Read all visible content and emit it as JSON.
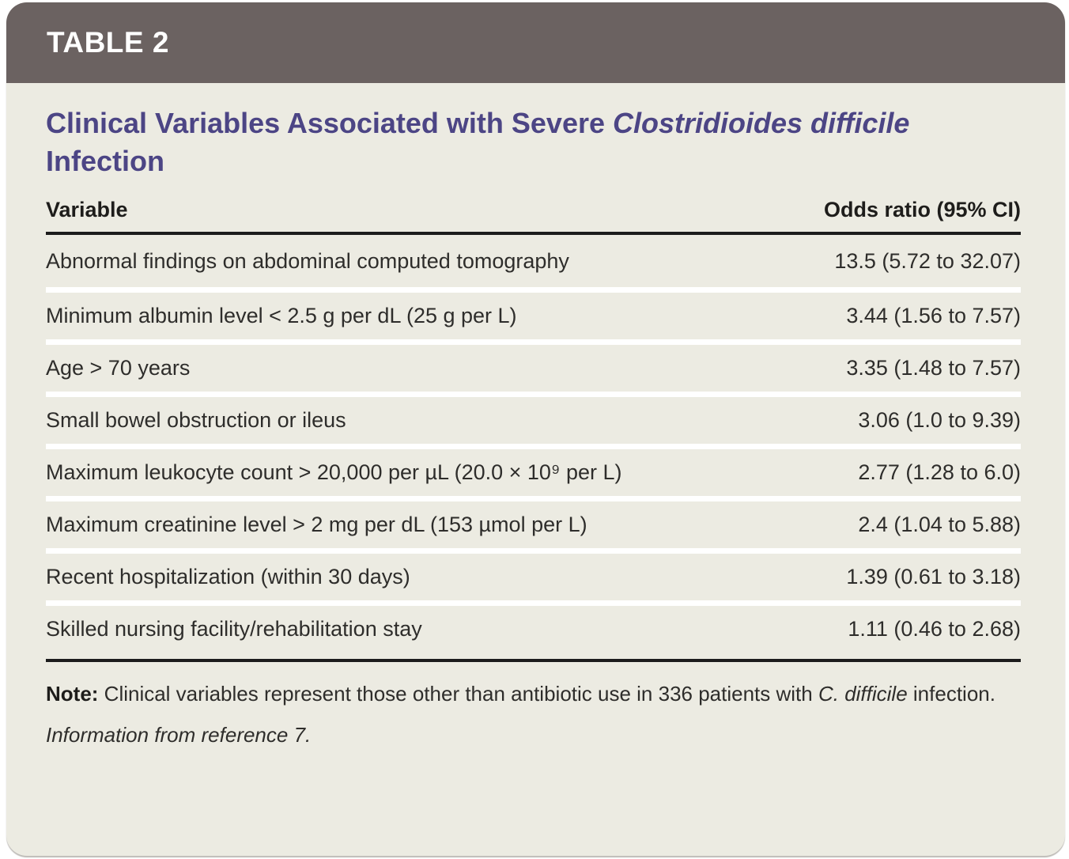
{
  "header": {
    "label": "TABLE 2"
  },
  "title": {
    "part1": "Clinical Variables Associated with Severe ",
    "italic": "Clostridioides difficile",
    "part3": " Infection"
  },
  "table": {
    "columns": [
      "Variable",
      "Odds ratio (95% CI)"
    ],
    "rows": [
      {
        "variable": "Abnormal findings on abdominal computed tomography",
        "odds_ratio": "13.5 (5.72 to 32.07)"
      },
      {
        "variable": "Minimum albumin level < 2.5 g per dL (25 g per L)",
        "odds_ratio": "3.44 (1.56 to 7.57)"
      },
      {
        "variable": "Age > 70 years",
        "odds_ratio": "3.35 (1.48 to 7.57)"
      },
      {
        "variable": "Small bowel obstruction or ileus",
        "odds_ratio": "3.06 (1.0 to 9.39)"
      },
      {
        "variable": "Maximum leukocyte count > 20,000 per µL (20.0 × 10⁹ per L)",
        "odds_ratio": "2.77 (1.28 to 6.0)"
      },
      {
        "variable": "Maximum creatinine level > 2 mg per dL (153 µmol per L)",
        "odds_ratio": "2.4 (1.04 to 5.88)"
      },
      {
        "variable": "Recent hospitalization (within 30 days)",
        "odds_ratio": "1.39 (0.61 to 3.18)"
      },
      {
        "variable": "Skilled nursing facility/rehabilitation stay",
        "odds_ratio": "1.11 (0.46 to 2.68)"
      }
    ]
  },
  "note": {
    "label": "Note:",
    "segments": [
      {
        "text": " Clinical variables represent those other than antibiotic use in 336 patients with ",
        "style": "normal"
      },
      {
        "text": "C. difficile",
        "style": "italic"
      },
      {
        "text": " infection.",
        "style": "normal"
      }
    ]
  },
  "source": "Information from reference 7.",
  "colors": {
    "header_bar": "#6b6261",
    "card_background": "#ecebe2",
    "title": "#4c4585",
    "rule": "#1c1c1c",
    "row_separator": "#ffffff"
  }
}
